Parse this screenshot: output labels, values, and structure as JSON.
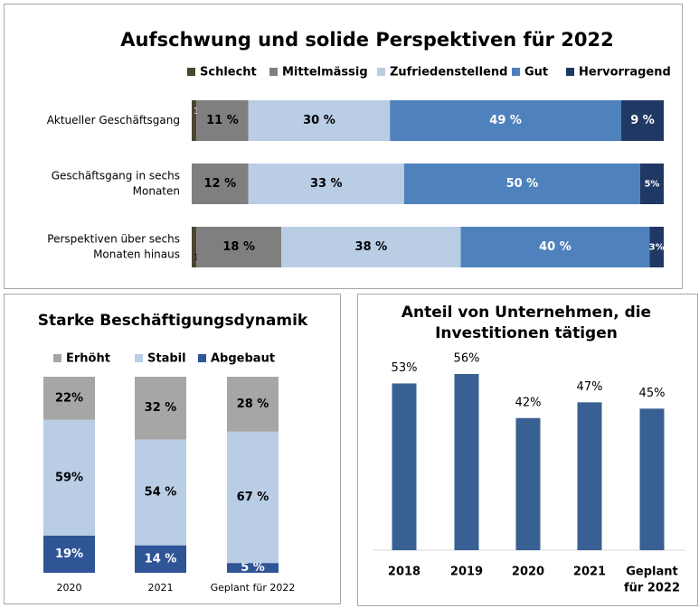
{
  "colors": {
    "schlecht": "#4a4532",
    "mittelmaessig": "#7f7f7f",
    "zufriedenstellend": "#b9cde5",
    "gut": "#4f81bd",
    "hervorragend": "#1f3864",
    "erhoeht": "#a6a6a6",
    "stabil": "#b9cde5",
    "abgebaut": "#2f5597",
    "invest": "#386092"
  },
  "chart_data": [
    {
      "type": "bar",
      "orientation": "horizontal",
      "stacked": "percent",
      "title": "Aufschwung und solide Perspektiven für 2022",
      "legend_position": "top",
      "categories": [
        "Aktueller Geschäftsgang",
        "Geschäftsgang in sechs Monaten",
        "Perspektiven über sechs Monaten hinaus"
      ],
      "series": [
        {
          "name": "Schlecht",
          "values": [
            1,
            0,
            1
          ],
          "labels": [
            "1%",
            "",
            "1%"
          ]
        },
        {
          "name": "Mittelmässig",
          "values": [
            11,
            12,
            18
          ],
          "labels": [
            "11 %",
            "12 %",
            "18 %"
          ]
        },
        {
          "name": "Zufriedenstellend",
          "values": [
            30,
            33,
            38
          ],
          "labels": [
            "30 %",
            "33 %",
            "38 %"
          ]
        },
        {
          "name": "Gut",
          "values": [
            49,
            50,
            40
          ],
          "labels": [
            "49 %",
            "50 %",
            "40 %"
          ]
        },
        {
          "name": "Hervorragend",
          "values": [
            9,
            5,
            3
          ],
          "labels": [
            "9 %",
            "5%",
            "3%"
          ]
        }
      ]
    },
    {
      "type": "bar",
      "orientation": "vertical",
      "stacked": "percent",
      "title": "Starke Beschäftigungsdynamik",
      "legend_position": "top",
      "categories": [
        "2020",
        "2021",
        "Geplant für 2022"
      ],
      "series": [
        {
          "name": "Abgebaut",
          "values": [
            19,
            14,
            5
          ],
          "labels": [
            "19%",
            "14 %",
            "5 %"
          ]
        },
        {
          "name": "Stabil",
          "values": [
            59,
            54,
            67
          ],
          "labels": [
            "59%",
            "54 %",
            "67 %"
          ]
        },
        {
          "name": "Erhöht",
          "values": [
            22,
            32,
            28
          ],
          "labels": [
            "22%",
            "32 %",
            "28 %"
          ]
        }
      ]
    },
    {
      "type": "bar",
      "orientation": "vertical",
      "title": "Anteil von Unternehmen, die Investitionen tätigen",
      "categories": [
        "2018",
        "2019",
        "2020",
        "2021",
        "Geplant für 2022"
      ],
      "values": [
        53,
        56,
        42,
        47,
        45
      ],
      "labels": [
        "53%",
        "56%",
        "42%",
        "47%",
        "45%"
      ],
      "ylim": [
        0,
        60
      ]
    }
  ]
}
